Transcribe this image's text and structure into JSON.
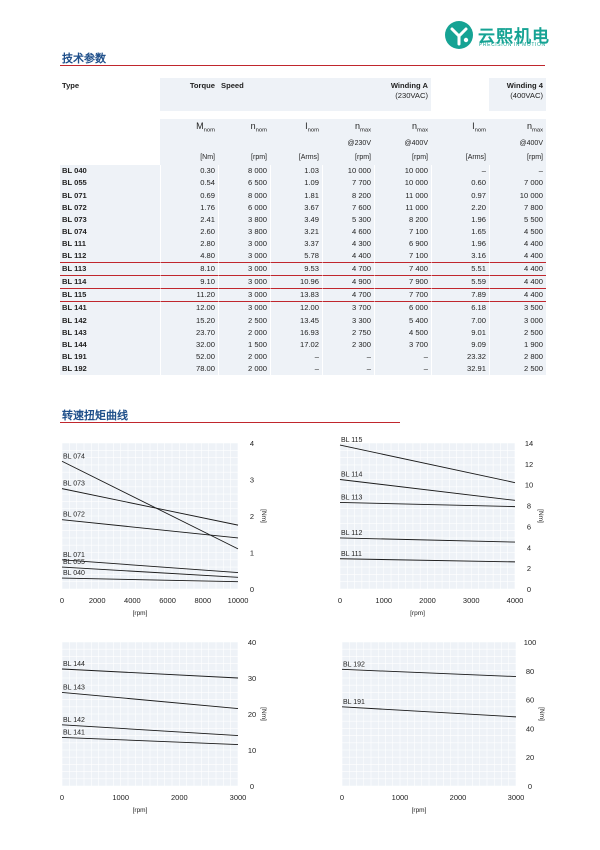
{
  "brand": {
    "name": "云熙机电",
    "tagline": "PRECISION IN MOTION",
    "accent": "#16a394"
  },
  "sections": {
    "tech_params": "技术参数",
    "torque_curves": "转速扭矩曲线"
  },
  "table": {
    "header1": {
      "type": "Type",
      "torque": "Torque",
      "speed": "Speed",
      "winding_a": "Winding A",
      "winding_a_sub": "(230VAC)",
      "winding_4": "Winding 4",
      "winding_4_sub": "(400VAC)"
    },
    "header2": [
      {
        "sym": "M",
        "sub": "nom",
        "cond": "",
        "unit": "[Nm]"
      },
      {
        "sym": "n",
        "sub": "nom",
        "cond": "",
        "unit": "[rpm]"
      },
      {
        "sym": "I",
        "sub": "nom",
        "cond": "",
        "unit": "[Arms]"
      },
      {
        "sym": "n",
        "sub": "max",
        "cond": "@230V",
        "unit": "[rpm]"
      },
      {
        "sym": "n",
        "sub": "max",
        "cond": "@400V",
        "unit": "[rpm]"
      },
      {
        "sym": "I",
        "sub": "nom",
        "cond": "",
        "unit": "[Arms]"
      },
      {
        "sym": "n",
        "sub": "max",
        "cond": "@400V",
        "unit": "[rpm]"
      }
    ],
    "rows": [
      [
        "BL 040",
        "0.30",
        "8 000",
        "1.03",
        "10 000",
        "10 000",
        "–",
        "–"
      ],
      [
        "BL 055",
        "0.54",
        "6 500",
        "1.09",
        "7 700",
        "10 000",
        "0.60",
        "7 000"
      ],
      [
        "BL 071",
        "0.69",
        "8 000",
        "1.81",
        "8 200",
        "11 000",
        "0.97",
        "10 000"
      ],
      [
        "BL 072",
        "1.76",
        "6 000",
        "3.67",
        "7 600",
        "11 000",
        "2.20",
        "7 800"
      ],
      [
        "BL 073",
        "2.41",
        "3 800",
        "3.49",
        "5 300",
        "8 200",
        "1.96",
        "5 500"
      ],
      [
        "BL 074",
        "2.60",
        "3 800",
        "3.21",
        "4 600",
        "7 100",
        "1.65",
        "4 500"
      ],
      [
        "BL 111",
        "2.80",
        "3 000",
        "3.37",
        "4 300",
        "6 900",
        "1.96",
        "4 400"
      ],
      [
        "BL 112",
        "4.80",
        "3 000",
        "5.78",
        "4 400",
        "7 100",
        "3.16",
        "4 400"
      ],
      [
        "BL 113",
        "8.10",
        "3 000",
        "9.53",
        "4 700",
        "7 400",
        "5.51",
        "4 400"
      ],
      [
        "BL 114",
        "9.10",
        "3 000",
        "10.96",
        "4 900",
        "7 900",
        "5.59",
        "4 400"
      ],
      [
        "BL 115",
        "11.20",
        "3 000",
        "13.83",
        "4 700",
        "7 700",
        "7.89",
        "4 400"
      ],
      [
        "BL 141",
        "12.00",
        "3 000",
        "12.00",
        "3 700",
        "6 000",
        "6.18",
        "3 500"
      ],
      [
        "BL 142",
        "15.20",
        "2 500",
        "13.45",
        "3 300",
        "5 400",
        "7.00",
        "3 000"
      ],
      [
        "BL 143",
        "23.70",
        "2 000",
        "16.93",
        "2 750",
        "4 500",
        "9.01",
        "2 500"
      ],
      [
        "BL 144",
        "32.00",
        "1 500",
        "17.02",
        "2 300",
        "3 700",
        "9.09",
        "1 900"
      ],
      [
        "BL 191",
        "52.00",
        "2 000",
        "–",
        "–",
        "–",
        "23.32",
        "2 800"
      ],
      [
        "BL 192",
        "78.00",
        "2 000",
        "–",
        "–",
        "–",
        "32.91",
        "2 500"
      ]
    ]
  },
  "chart_data": [
    {
      "type": "line",
      "xlabel": "[rpm]",
      "ylabel": "[Nm]",
      "xticks": [
        0,
        2000,
        4000,
        6000,
        8000,
        10000
      ],
      "yticks": [
        0,
        1,
        2,
        3,
        4
      ],
      "xlim": [
        0,
        10000
      ],
      "ylim": [
        0,
        4
      ],
      "series": [
        {
          "name": "BL 074",
          "x": [
            0,
            10000
          ],
          "y": [
            3.5,
            1.1
          ]
        },
        {
          "name": "BL 073",
          "x": [
            0,
            10000
          ],
          "y": [
            2.75,
            1.75
          ]
        },
        {
          "name": "BL 072",
          "x": [
            0,
            10000
          ],
          "y": [
            1.9,
            1.4
          ]
        },
        {
          "name": "BL 071",
          "x": [
            0,
            10000
          ],
          "y": [
            0.8,
            0.45
          ]
        },
        {
          "name": "BL 055",
          "x": [
            0,
            10000
          ],
          "y": [
            0.6,
            0.32
          ]
        },
        {
          "name": "BL 040",
          "x": [
            0,
            10000
          ],
          "y": [
            0.3,
            0.2
          ]
        }
      ]
    },
    {
      "type": "line",
      "xlabel": "[rpm]",
      "ylabel": "[Nm]",
      "xticks": [
        0,
        1000,
        2000,
        3000,
        4000
      ],
      "yticks": [
        0,
        2,
        4,
        6,
        8,
        10,
        12,
        14
      ],
      "xlim": [
        0,
        4000
      ],
      "ylim": [
        0,
        14
      ],
      "series": [
        {
          "name": "BL 115",
          "x": [
            0,
            4000
          ],
          "y": [
            13.8,
            10.2
          ]
        },
        {
          "name": "BL 114",
          "x": [
            0,
            4000
          ],
          "y": [
            10.5,
            8.5
          ]
        },
        {
          "name": "BL 113",
          "x": [
            0,
            4000
          ],
          "y": [
            8.3,
            7.9
          ]
        },
        {
          "name": "BL 112",
          "x": [
            0,
            4000
          ],
          "y": [
            4.9,
            4.5
          ]
        },
        {
          "name": "BL 111",
          "x": [
            0,
            4000
          ],
          "y": [
            2.9,
            2.6
          ]
        }
      ]
    },
    {
      "type": "line",
      "xlabel": "[rpm]",
      "ylabel": "[Nm]",
      "xticks": [
        0,
        1000,
        2000,
        3000
      ],
      "yticks": [
        0,
        10,
        20,
        30,
        40
      ],
      "xlim": [
        0,
        3000
      ],
      "ylim": [
        0,
        40
      ],
      "series": [
        {
          "name": "BL 144",
          "x": [
            0,
            3000
          ],
          "y": [
            32.5,
            30
          ]
        },
        {
          "name": "BL 143",
          "x": [
            0,
            3000
          ],
          "y": [
            26,
            21.5
          ]
        },
        {
          "name": "BL 142",
          "x": [
            0,
            3000
          ],
          "y": [
            17,
            14
          ]
        },
        {
          "name": "BL 141",
          "x": [
            0,
            3000
          ],
          "y": [
            13.5,
            11.5
          ]
        }
      ]
    },
    {
      "type": "line",
      "xlabel": "[rpm]",
      "ylabel": "[Nm]",
      "xticks": [
        0,
        1000,
        2000,
        3000
      ],
      "yticks": [
        0,
        20,
        40,
        60,
        80,
        100
      ],
      "xlim": [
        0,
        3000
      ],
      "ylim": [
        0,
        100
      ],
      "series": [
        {
          "name": "BL 192",
          "x": [
            0,
            3000
          ],
          "y": [
            81,
            76
          ]
        },
        {
          "name": "BL 191",
          "x": [
            0,
            3000
          ],
          "y": [
            55,
            48
          ]
        }
      ]
    }
  ]
}
